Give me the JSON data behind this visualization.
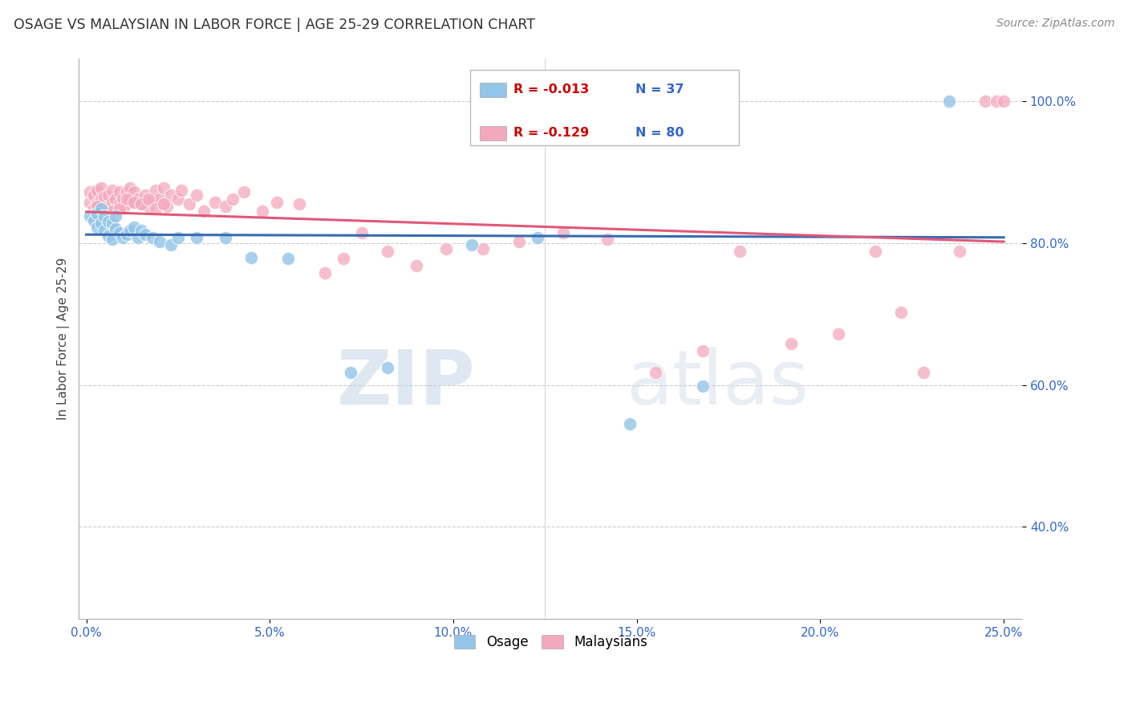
{
  "title": "OSAGE VS MALAYSIAN IN LABOR FORCE | AGE 25-29 CORRELATION CHART",
  "source": "Source: ZipAtlas.com",
  "ylabel": "In Labor Force | Age 25-29",
  "xlabel_vals": [
    0.0,
    0.05,
    0.1,
    0.15,
    0.2,
    0.25
  ],
  "ylabel_vals": [
    0.4,
    0.6,
    0.8,
    1.0
  ],
  "xlim": [
    -0.002,
    0.255
  ],
  "ylim": [
    0.27,
    1.06
  ],
  "legend_r_blue": "-0.013",
  "legend_n_blue": "37",
  "legend_r_pink": "-0.129",
  "legend_n_pink": "80",
  "blue_color": "#92C5E8",
  "pink_color": "#F4A8BC",
  "trendline_blue_color": "#3A6BB0",
  "trendline_pink_color": "#E05878",
  "watermark_zip": "ZIP",
  "watermark_atlas": "atlas",
  "osage_x": [
    0.001,
    0.002,
    0.003,
    0.003,
    0.004,
    0.004,
    0.005,
    0.005,
    0.006,
    0.006,
    0.007,
    0.007,
    0.008,
    0.008,
    0.009,
    0.01,
    0.011,
    0.012,
    0.013,
    0.014,
    0.015,
    0.016,
    0.018,
    0.02,
    0.023,
    0.025,
    0.03,
    0.038,
    0.045,
    0.055,
    0.072,
    0.082,
    0.105,
    0.148,
    0.168,
    0.235,
    0.123
  ],
  "osage_y": [
    0.838,
    0.832,
    0.822,
    0.842,
    0.828,
    0.848,
    0.818,
    0.838,
    0.81,
    0.83,
    0.805,
    0.828,
    0.82,
    0.838,
    0.815,
    0.808,
    0.812,
    0.818,
    0.822,
    0.808,
    0.818,
    0.812,
    0.808,
    0.802,
    0.798,
    0.808,
    0.808,
    0.808,
    0.78,
    0.778,
    0.618,
    0.625,
    0.798,
    0.545,
    0.598,
    1.0,
    0.808
  ],
  "malaysian_x": [
    0.001,
    0.001,
    0.002,
    0.002,
    0.003,
    0.003,
    0.004,
    0.004,
    0.005,
    0.005,
    0.006,
    0.006,
    0.007,
    0.007,
    0.008,
    0.008,
    0.009,
    0.009,
    0.01,
    0.01,
    0.011,
    0.011,
    0.012,
    0.012,
    0.013,
    0.013,
    0.014,
    0.015,
    0.016,
    0.017,
    0.018,
    0.019,
    0.02,
    0.021,
    0.022,
    0.023,
    0.025,
    0.026,
    0.028,
    0.03,
    0.032,
    0.035,
    0.038,
    0.04,
    0.043,
    0.048,
    0.052,
    0.058,
    0.065,
    0.07,
    0.075,
    0.082,
    0.09,
    0.098,
    0.108,
    0.118,
    0.13,
    0.142,
    0.155,
    0.168,
    0.178,
    0.192,
    0.205,
    0.215,
    0.222,
    0.228,
    0.238,
    0.245,
    0.248,
    0.25,
    0.003,
    0.005,
    0.007,
    0.009,
    0.011,
    0.013,
    0.015,
    0.017,
    0.019,
    0.021
  ],
  "malaysian_y": [
    0.858,
    0.872,
    0.848,
    0.868,
    0.855,
    0.875,
    0.862,
    0.878,
    0.845,
    0.865,
    0.852,
    0.868,
    0.858,
    0.875,
    0.862,
    0.845,
    0.855,
    0.872,
    0.848,
    0.862,
    0.855,
    0.872,
    0.862,
    0.878,
    0.858,
    0.872,
    0.862,
    0.855,
    0.868,
    0.852,
    0.862,
    0.875,
    0.862,
    0.878,
    0.852,
    0.868,
    0.862,
    0.875,
    0.855,
    0.868,
    0.845,
    0.858,
    0.852,
    0.862,
    0.872,
    0.845,
    0.858,
    0.855,
    0.758,
    0.778,
    0.815,
    0.788,
    0.768,
    0.792,
    0.792,
    0.802,
    0.815,
    0.805,
    0.618,
    0.648,
    0.788,
    0.658,
    0.672,
    0.788,
    0.702,
    0.618,
    0.788,
    1.0,
    1.0,
    1.0,
    0.852,
    0.838,
    0.845,
    0.848,
    0.862,
    0.858,
    0.855,
    0.862,
    0.848,
    0.855
  ],
  "blue_trendline_x": [
    0.0,
    0.25
  ],
  "blue_trendline_y": [
    0.812,
    0.808
  ],
  "pink_trendline_x": [
    0.0,
    0.25
  ],
  "pink_trendline_y": [
    0.844,
    0.802
  ]
}
